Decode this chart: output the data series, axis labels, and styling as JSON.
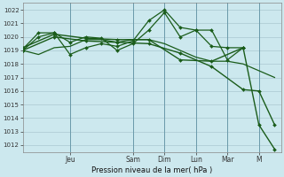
{
  "background_color": "#cce8ee",
  "grid_color": "#aac8d0",
  "line_color": "#1a5c1a",
  "xlabel": "Pression niveau de la mer( hPa )",
  "ylim": [
    1011.5,
    1022.5
  ],
  "yticks": [
    1012,
    1013,
    1014,
    1015,
    1016,
    1017,
    1018,
    1019,
    1020,
    1021,
    1022
  ],
  "day_labels": [
    "Jeu",
    "Sam",
    "Dim",
    "Lun",
    "Mar",
    "M"
  ],
  "day_x": [
    1.5,
    3.5,
    4.5,
    5.5,
    6.5,
    7.5
  ],
  "vline_x": [
    1.5,
    3.5,
    4.5,
    5.5,
    6.5,
    7.5
  ],
  "xlim": [
    0,
    8.2
  ],
  "lines": [
    {
      "x": [
        0,
        0.5,
        1.0,
        1.5,
        2.0,
        2.5,
        3.0,
        3.5,
        4.0,
        4.5,
        5.0,
        5.5,
        6.0,
        6.5,
        7.0,
        7.5,
        8.0
      ],
      "y": [
        1019.0,
        1018.7,
        1019.2,
        1019.3,
        1019.8,
        1019.8,
        1019.6,
        1019.8,
        1019.8,
        1019.5,
        1019.0,
        1018.5,
        1018.2,
        1018.2,
        1018.0,
        1017.5,
        1017.0
      ],
      "marker": null,
      "lw": 0.9
    },
    {
      "x": [
        0,
        0.5,
        1.0,
        1.5,
        2.0,
        2.5,
        3.0,
        3.5,
        4.0,
        4.5,
        5.0,
        5.5,
        6.0,
        6.5,
        7.0
      ],
      "y": [
        1019.1,
        1020.3,
        1020.3,
        1019.6,
        1020.0,
        1019.9,
        1019.0,
        1019.5,
        1020.5,
        1021.8,
        1020.0,
        1020.5,
        1019.3,
        1019.2,
        1019.2
      ],
      "marker": "D",
      "lw": 0.9
    },
    {
      "x": [
        0,
        0.5,
        1.0,
        1.5,
        2.0,
        2.5,
        3.0,
        3.5,
        4.0,
        4.5,
        5.0,
        5.5,
        6.0,
        6.5,
        7.0
      ],
      "y": [
        1019.0,
        1020.0,
        1020.3,
        1018.7,
        1019.2,
        1019.5,
        1019.3,
        1019.7,
        1021.2,
        1022.0,
        1020.7,
        1020.5,
        1020.5,
        1018.3,
        1019.2
      ],
      "marker": "D",
      "lw": 0.9
    },
    {
      "x": [
        0,
        1.0,
        2.0,
        3.0,
        4.0,
        5.0,
        6.0,
        7.0,
        7.5,
        8.0
      ],
      "y": [
        1019.2,
        1020.2,
        1019.9,
        1019.8,
        1019.8,
        1018.3,
        1018.2,
        1019.2,
        1013.5,
        1011.7
      ],
      "marker": "D",
      "lw": 1.0
    },
    {
      "x": [
        0,
        1.0,
        2.0,
        3.0,
        4.0,
        5.0,
        6.0,
        7.0,
        7.5,
        8.0
      ],
      "y": [
        1019.0,
        1020.0,
        1019.7,
        1019.6,
        1019.5,
        1018.8,
        1017.8,
        1016.1,
        1016.0,
        1013.5
      ],
      "marker": "D",
      "lw": 1.0
    }
  ]
}
